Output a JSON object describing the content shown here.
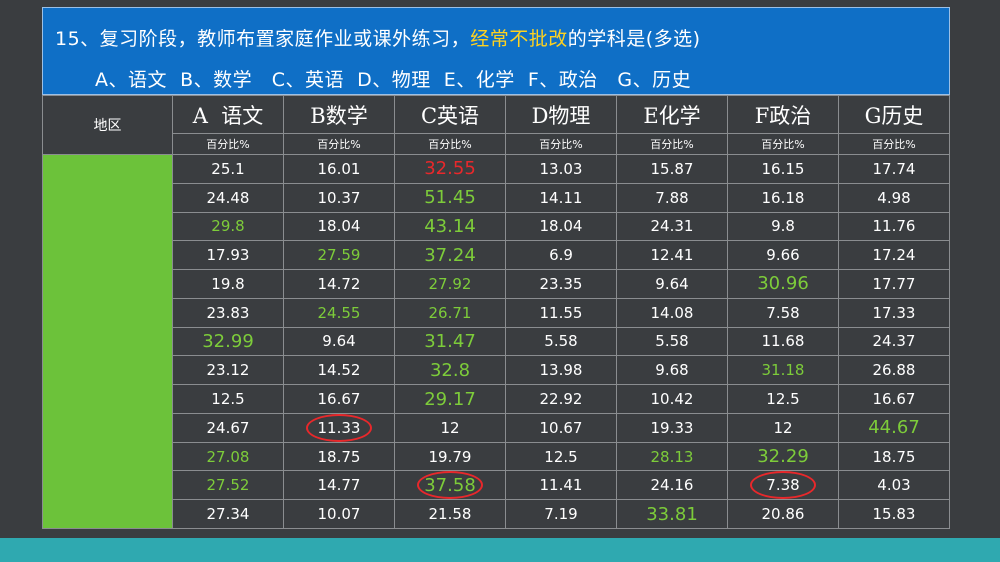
{
  "header": {
    "question_prefix": "15、复习阶段，教师布置家庭作业或课外练习，",
    "question_highlight": "经常不批改",
    "question_suffix": "的学科是(多选)",
    "options": "A、语文  B、数学   C、英语  D、物理  E、化学  F、政治   G、历史"
  },
  "table": {
    "region_header": "地区",
    "subjects": [
      "A  语文",
      "B数学",
      "C英语",
      "D物理",
      "E化学",
      "F政治",
      "G历史"
    ],
    "unit": "百分比%",
    "rows": [
      [
        "25.1",
        "16.01",
        "32.55",
        "13.03",
        "15.87",
        "16.15",
        "17.74"
      ],
      [
        "24.48",
        "10.37",
        "51.45",
        "14.11",
        "7.88",
        "16.18",
        "4.98"
      ],
      [
        "29.8",
        "18.04",
        "43.14",
        "18.04",
        "24.31",
        "9.8",
        "11.76"
      ],
      [
        "17.93",
        "27.59",
        "37.24",
        "6.9",
        "12.41",
        "9.66",
        "17.24"
      ],
      [
        "19.8",
        "14.72",
        "27.92",
        "23.35",
        "9.64",
        "30.96",
        "17.77"
      ],
      [
        "23.83",
        "24.55",
        "26.71",
        "11.55",
        "14.08",
        "7.58",
        "17.33"
      ],
      [
        "32.99",
        "9.64",
        "31.47",
        "5.58",
        "5.58",
        "11.68",
        "24.37"
      ],
      [
        "23.12",
        "14.52",
        "32.8",
        "13.98",
        "9.68",
        "31.18",
        "26.88"
      ],
      [
        "12.5",
        "16.67",
        "29.17",
        "22.92",
        "10.42",
        "12.5",
        "16.67"
      ],
      [
        "24.67",
        "11.33",
        "12",
        "10.67",
        "19.33",
        "12",
        "44.67"
      ],
      [
        "27.08",
        "18.75",
        "19.79",
        "12.5",
        "28.13",
        "32.29",
        "18.75"
      ],
      [
        "27.52",
        "14.77",
        "37.58",
        "11.41",
        "24.16",
        "7.38",
        "4.03"
      ],
      [
        "27.34",
        "10.07",
        "21.58",
        "7.19",
        "33.81",
        "20.86",
        "15.83"
      ]
    ]
  },
  "colors": {
    "header_bg": "#0f6fc6",
    "highlight": "#ffd21f",
    "green_value": "#7dcc3a",
    "red_value": "#e8282b",
    "region_fill": "#6cc23a",
    "footer_bar": "#2fa9b0"
  }
}
